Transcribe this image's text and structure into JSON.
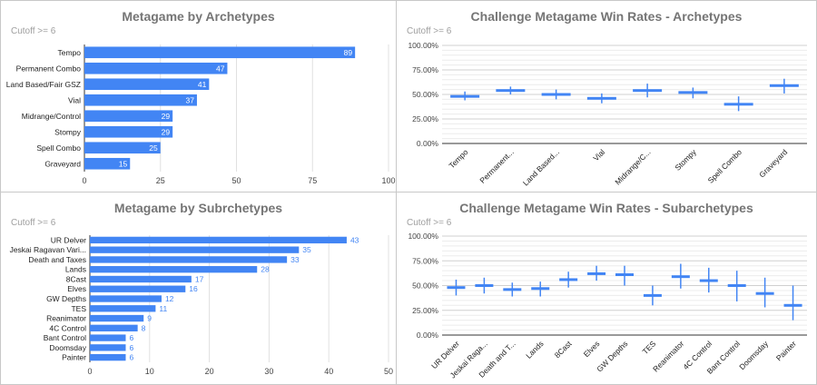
{
  "chart_data": [
    {
      "type": "bar",
      "orientation": "horizontal",
      "title": "Metagame by Archetypes",
      "subtitle": "Cutoff >= 6",
      "categories": [
        "Tempo",
        "Permanent Combo",
        "Land Based/Fair GSZ",
        "Vial",
        "Midrange/Control",
        "Stompy",
        "Spell Combo",
        "Graveyard"
      ],
      "values": [
        89,
        47,
        41,
        37,
        29,
        29,
        25,
        15
      ],
      "xlim": [
        0,
        100
      ],
      "xticks": [
        0,
        25,
        50,
        75,
        100
      ],
      "bar_color": "#4285f4",
      "data_label_position": "inside",
      "grid": true
    },
    {
      "type": "candlestick",
      "title": "Challenge Metagame Win Rates - Archetypes",
      "subtitle": "Cutoff >= 6",
      "categories": [
        "Tempo",
        "Permanent...",
        "Land Based...",
        "Vial",
        "Midrange/C...",
        "Stompy",
        "Spell Combo",
        "Graveyard"
      ],
      "low": [
        0.44,
        0.5,
        0.45,
        0.41,
        0.47,
        0.46,
        0.33,
        0.51
      ],
      "high": [
        0.53,
        0.58,
        0.55,
        0.51,
        0.61,
        0.57,
        0.48,
        0.66
      ],
      "value": [
        0.48,
        0.54,
        0.5,
        0.46,
        0.54,
        0.52,
        0.4,
        0.59
      ],
      "ylim": [
        0,
        1
      ],
      "yticks": [
        "0.00%",
        "25.00%",
        "50.00%",
        "75.00%",
        "100.00%"
      ],
      "color": "#4285f4",
      "grid": true
    },
    {
      "type": "bar",
      "orientation": "horizontal",
      "title": "Metagame by Subrchetypes",
      "subtitle": "Cutoff >= 6",
      "categories": [
        "UR Delver",
        "Jeskai Ragavan Vari...",
        "Death and Taxes",
        "Lands",
        "8Cast",
        "Elves",
        "GW Depths",
        "TES",
        "Reanimator",
        "4C Control",
        "Bant Control",
        "Doomsday",
        "Painter"
      ],
      "values": [
        43,
        35,
        33,
        28,
        17,
        16,
        12,
        11,
        9,
        8,
        6,
        6,
        6
      ],
      "xlim": [
        0,
        50
      ],
      "xticks": [
        0,
        10,
        20,
        30,
        40,
        50
      ],
      "bar_color": "#4285f4",
      "data_label_position": "outside",
      "grid": true
    },
    {
      "type": "candlestick",
      "title": "Challenge Metagame Win Rates - Subarchetypes",
      "subtitle": "Cutoff >= 6",
      "categories": [
        "UR Delver",
        "Jeskai Raga...",
        "Death and T...",
        "Lands",
        "8Cast",
        "Elves",
        "GW Depths",
        "TES",
        "Reanimator",
        "4C Control",
        "Bant Control",
        "Doomsday",
        "Painter"
      ],
      "low": [
        0.4,
        0.42,
        0.39,
        0.39,
        0.48,
        0.55,
        0.5,
        0.3,
        0.47,
        0.43,
        0.34,
        0.28,
        0.15
      ],
      "high": [
        0.56,
        0.58,
        0.53,
        0.54,
        0.64,
        0.7,
        0.7,
        0.5,
        0.72,
        0.68,
        0.65,
        0.58,
        0.5
      ],
      "value": [
        0.48,
        0.5,
        0.46,
        0.47,
        0.56,
        0.62,
        0.61,
        0.4,
        0.59,
        0.55,
        0.5,
        0.42,
        0.3
      ],
      "ylim": [
        0,
        1
      ],
      "yticks": [
        "0.00%",
        "25.00%",
        "50.00%",
        "75.00%",
        "100.00%"
      ],
      "color": "#4285f4",
      "grid": true
    }
  ]
}
